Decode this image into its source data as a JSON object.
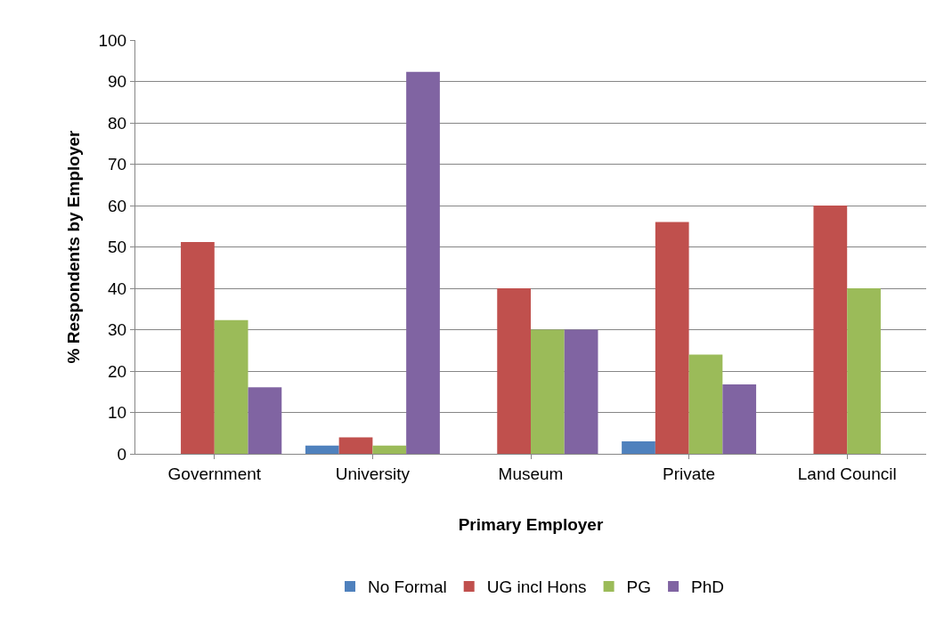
{
  "chart_data": {
    "type": "bar",
    "xlabel": "Primary Employer",
    "ylabel": "% Respondents by Employer",
    "categories": [
      "Government",
      "University",
      "Museum",
      "Private",
      "Land Council"
    ],
    "series": [
      {
        "name": "No Formal",
        "color": "#4f81bd",
        "values": [
          0,
          2,
          0,
          3,
          0
        ]
      },
      {
        "name": "UG incl Hons",
        "color": "#c0504d",
        "values": [
          51.2,
          4,
          40,
          56,
          60
        ]
      },
      {
        "name": "PG",
        "color": "#9bbb59",
        "values": [
          32.3,
          2,
          30,
          24,
          40
        ]
      },
      {
        "name": "PhD",
        "color": "#8064a2",
        "values": [
          16.1,
          92.3,
          30,
          16.8,
          0
        ]
      }
    ],
    "ylim": [
      0,
      100
    ],
    "yticks": [
      0,
      10,
      20,
      30,
      40,
      50,
      60,
      70,
      80,
      90,
      100
    ],
    "grid": "y",
    "legend": "bottom"
  }
}
